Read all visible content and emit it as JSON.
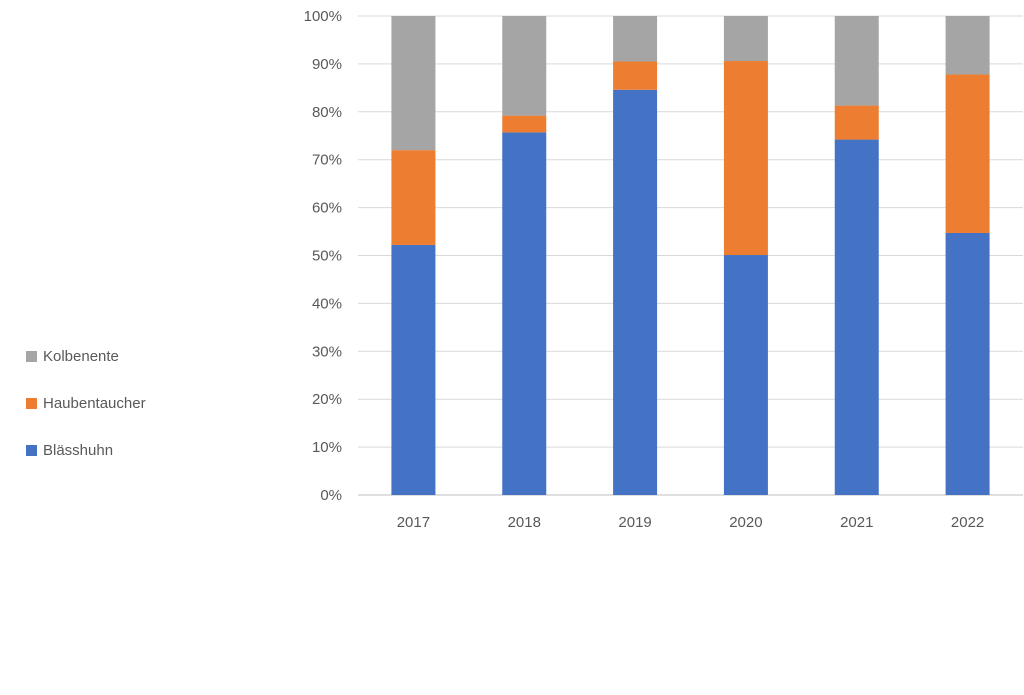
{
  "chart_data": {
    "type": "bar",
    "stacked": "percent",
    "categories": [
      "2017",
      "2018",
      "2019",
      "2020",
      "2021",
      "2022"
    ],
    "series": [
      {
        "name": "Blässhuhn",
        "color": "#4472C4",
        "values": [
          52.2,
          75.7,
          84.6,
          50.1,
          74.2,
          54.7
        ]
      },
      {
        "name": "Haubentaucher",
        "color": "#ED7D31",
        "values": [
          19.8,
          3.5,
          5.9,
          40.5,
          7.1,
          33.1
        ]
      },
      {
        "name": "Kolbenente",
        "color": "#A5A5A5",
        "values": [
          28.0,
          20.8,
          9.5,
          9.4,
          18.7,
          12.2
        ]
      }
    ],
    "y_ticks": [
      "0%",
      "10%",
      "20%",
      "30%",
      "40%",
      "50%",
      "60%",
      "70%",
      "80%",
      "90%",
      "100%"
    ],
    "ylim": [
      0,
      100
    ],
    "grid": true,
    "legend": "left"
  }
}
